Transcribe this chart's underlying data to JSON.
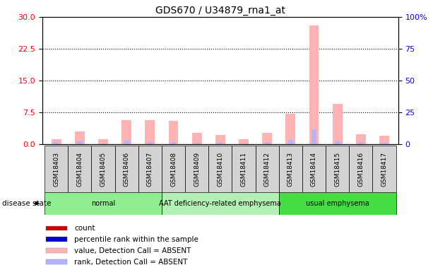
{
  "title": "GDS670 / U34879_rna1_at",
  "samples": [
    "GSM18403",
    "GSM18404",
    "GSM18405",
    "GSM18406",
    "GSM18407",
    "GSM18408",
    "GSM18409",
    "GSM18410",
    "GSM18411",
    "GSM18412",
    "GSM18413",
    "GSM18414",
    "GSM18415",
    "GSM18416",
    "GSM18417"
  ],
  "value_absent": [
    1.2,
    3.0,
    1.2,
    5.8,
    5.8,
    5.5,
    2.8,
    2.2,
    1.3,
    2.8,
    7.2,
    28.0,
    9.5,
    2.4,
    2.0
  ],
  "rank_absent": [
    0.5,
    0.8,
    0.3,
    0.9,
    0.6,
    0.5,
    0.4,
    0.4,
    0.3,
    0.5,
    1.1,
    3.5,
    0.8,
    0.5,
    0.4
  ],
  "ylim_left": [
    0,
    30
  ],
  "ylim_right": [
    0,
    100
  ],
  "yticks_left": [
    0,
    7.5,
    15,
    22.5,
    30
  ],
  "yticks_right": [
    0,
    25,
    50,
    75,
    100
  ],
  "ytick_labels_right": [
    "0",
    "25",
    "50",
    "75",
    "100%"
  ],
  "disease_groups": [
    {
      "label": "normal",
      "start": 0,
      "end": 5,
      "color": "#90EE90"
    },
    {
      "label": "AAT deficiency-related emphysema",
      "start": 5,
      "end": 10,
      "color": "#b3f0b3"
    },
    {
      "label": "usual emphysema",
      "start": 10,
      "end": 15,
      "color": "#44dd44"
    }
  ],
  "value_absent_color": "#ffb3b3",
  "rank_absent_color": "#b3b3ff",
  "count_color": "#cc0000",
  "rank_color": "#0000cc",
  "sample_box_color": "#d3d3d3",
  "legend_items": [
    {
      "color": "#cc0000",
      "label": "count"
    },
    {
      "color": "#0000cc",
      "label": "percentile rank within the sample"
    },
    {
      "color": "#ffb3b3",
      "label": "value, Detection Call = ABSENT"
    },
    {
      "color": "#b3b3ff",
      "label": "rank, Detection Call = ABSENT"
    }
  ]
}
